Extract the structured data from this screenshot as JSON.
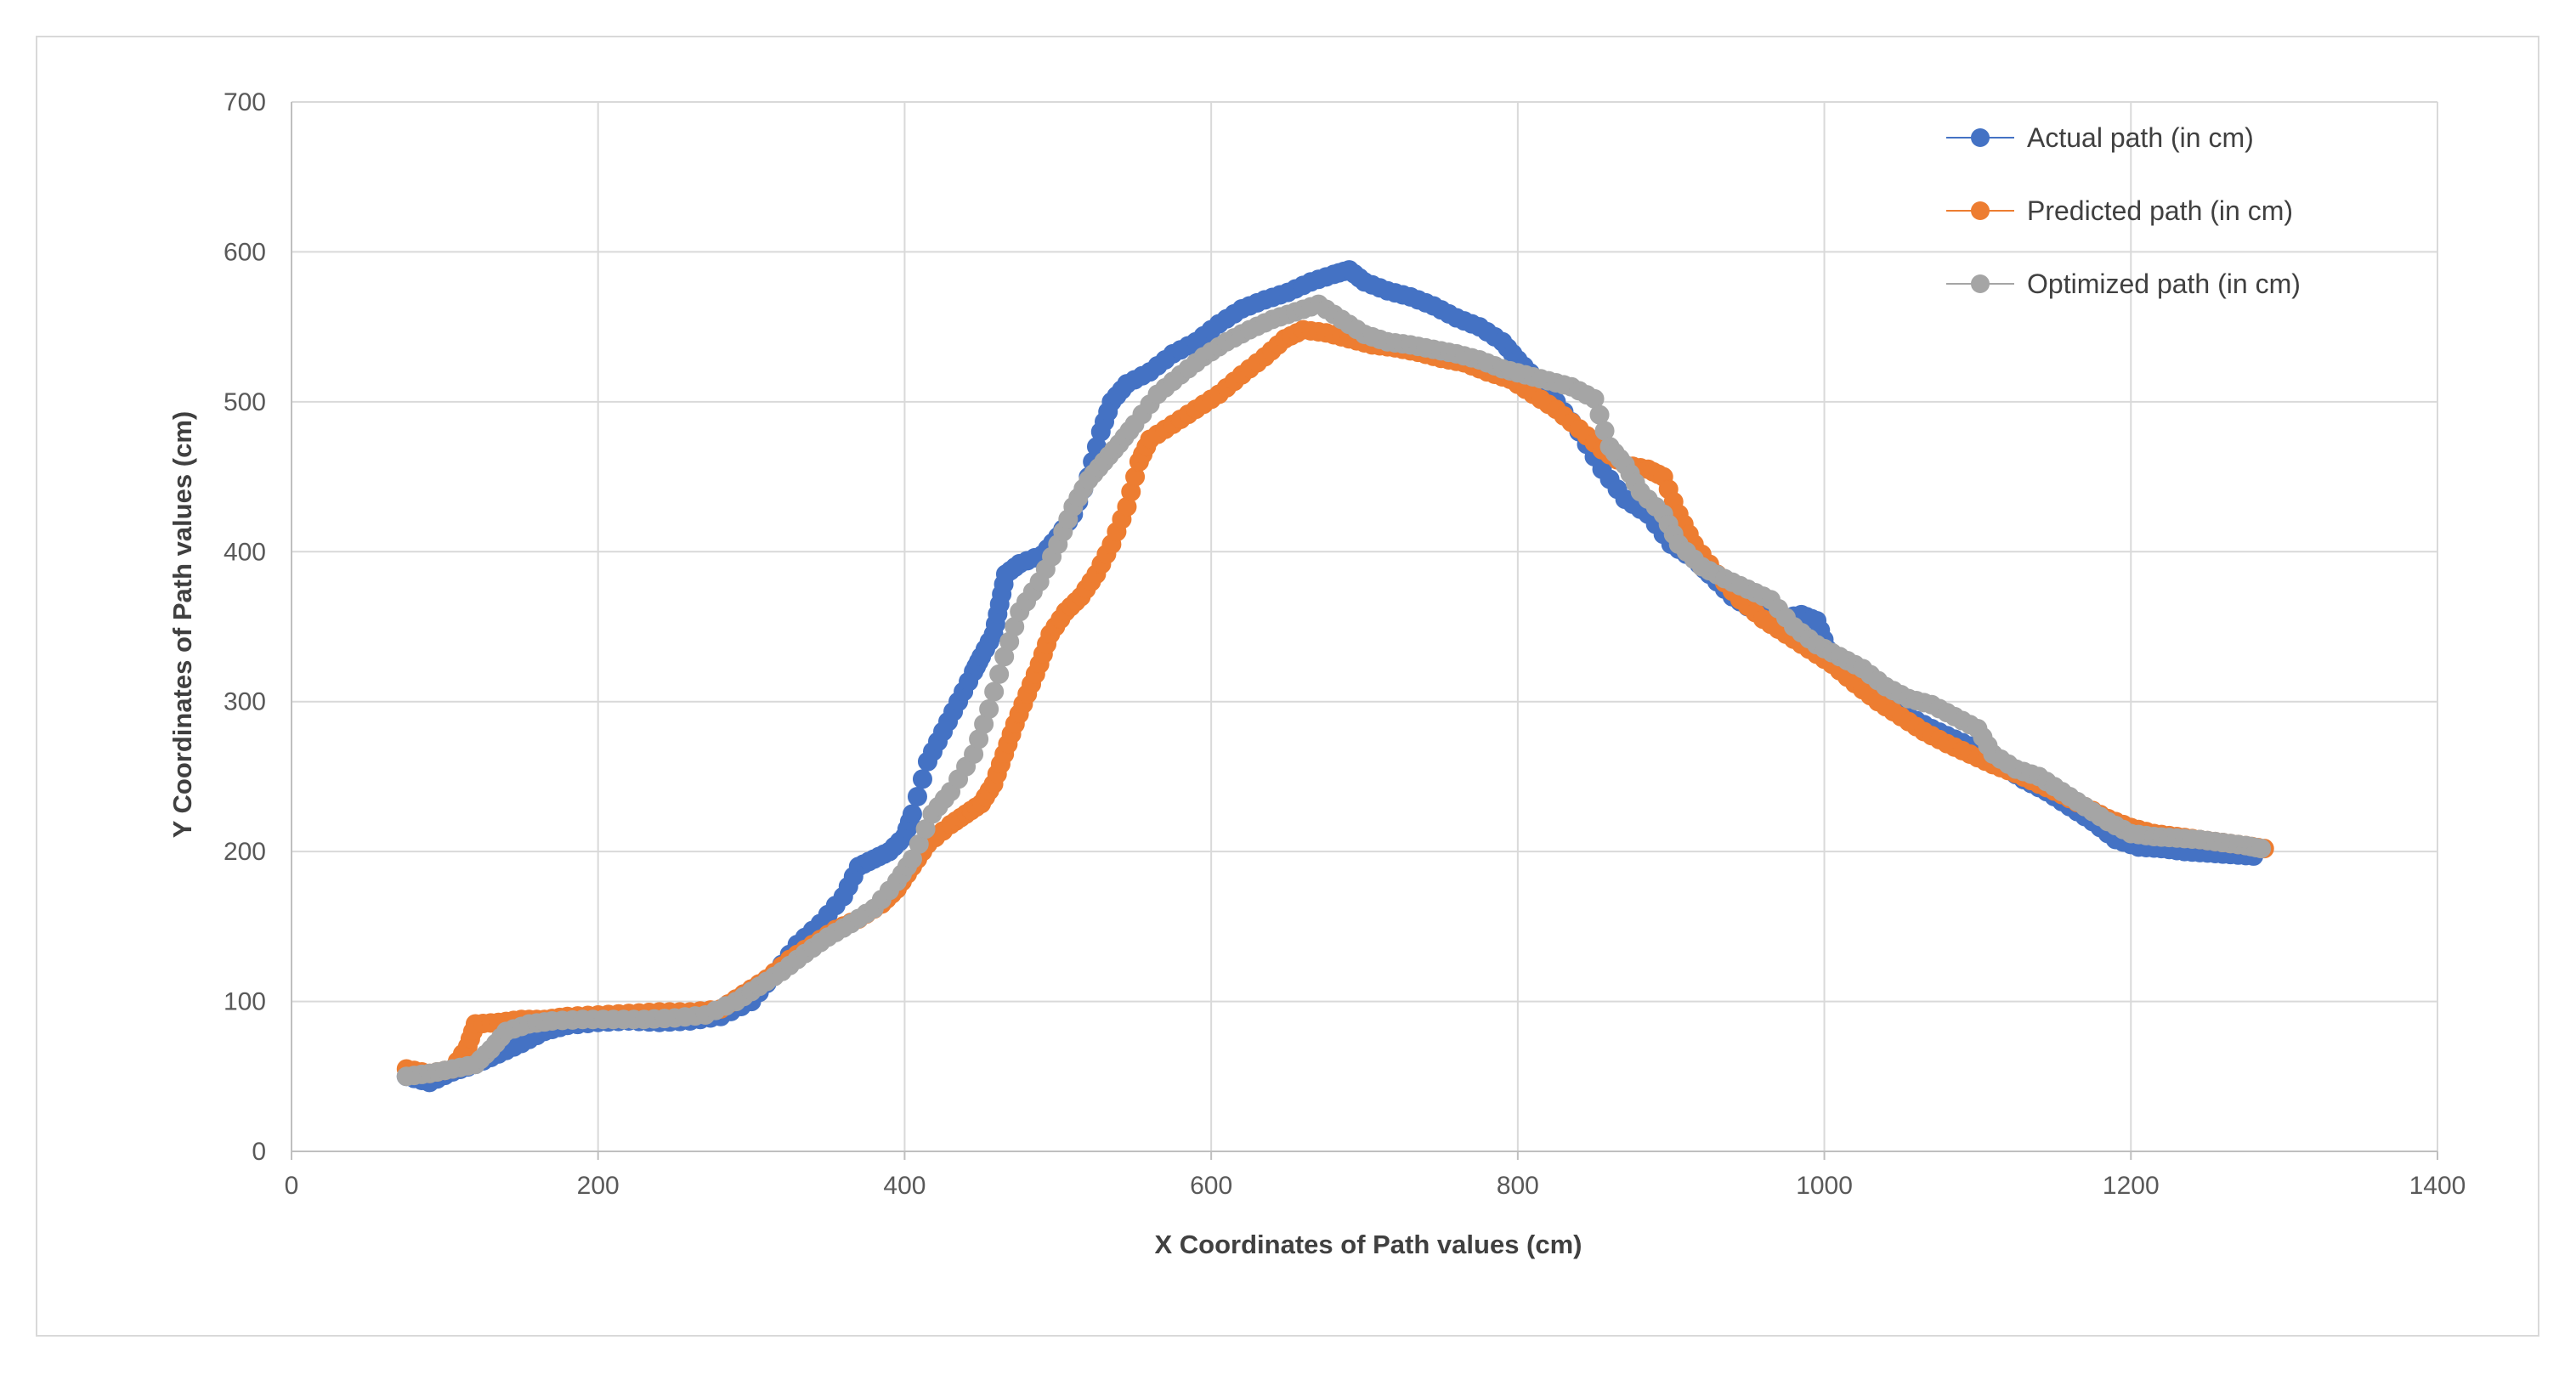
{
  "chart_data": {
    "type": "scatter",
    "title": "",
    "xlabel": "X Coordinates of Path values (cm)",
    "ylabel": "Y Coordinates of Path values (cm)",
    "xlim": [
      0,
      1400
    ],
    "ylim": [
      0,
      700
    ],
    "xticks": [
      0,
      200,
      400,
      600,
      800,
      1000,
      1200,
      1400
    ],
    "yticks": [
      0,
      100,
      200,
      300,
      400,
      500,
      600,
      700
    ],
    "xtick_labels": [
      "0",
      "200",
      "400",
      "600",
      "800",
      "1000",
      "1200",
      "1400"
    ],
    "ytick_labels": [
      "0",
      "100",
      "200",
      "300",
      "400",
      "500",
      "600",
      "700"
    ],
    "grid": true,
    "legend_position": "top-right",
    "series": [
      {
        "name": "Actual path (in cm)",
        "color": "#4472C4",
        "points": [
          [
            75,
            50
          ],
          [
            90,
            46
          ],
          [
            105,
            53
          ],
          [
            120,
            58
          ],
          [
            135,
            65
          ],
          [
            150,
            72
          ],
          [
            165,
            80
          ],
          [
            180,
            84
          ],
          [
            200,
            86
          ],
          [
            220,
            87
          ],
          [
            240,
            86
          ],
          [
            260,
            87
          ],
          [
            280,
            90
          ],
          [
            300,
            100
          ],
          [
            315,
            118
          ],
          [
            330,
            138
          ],
          [
            345,
            152
          ],
          [
            360,
            170
          ],
          [
            370,
            190
          ],
          [
            380,
            195
          ],
          [
            390,
            200
          ],
          [
            400,
            210
          ],
          [
            405,
            225
          ],
          [
            415,
            260
          ],
          [
            425,
            280
          ],
          [
            435,
            300
          ],
          [
            445,
            320
          ],
          [
            450,
            330
          ],
          [
            458,
            345
          ],
          [
            462,
            365
          ],
          [
            466,
            385
          ],
          [
            475,
            392
          ],
          [
            490,
            398
          ],
          [
            500,
            410
          ],
          [
            510,
            425
          ],
          [
            520,
            450
          ],
          [
            528,
            480
          ],
          [
            535,
            500
          ],
          [
            545,
            512
          ],
          [
            560,
            520
          ],
          [
            575,
            532
          ],
          [
            590,
            540
          ],
          [
            605,
            552
          ],
          [
            620,
            562
          ],
          [
            635,
            568
          ],
          [
            650,
            573
          ],
          [
            665,
            580
          ],
          [
            680,
            585
          ],
          [
            690,
            588
          ],
          [
            700,
            580
          ],
          [
            715,
            574
          ],
          [
            730,
            570
          ],
          [
            745,
            564
          ],
          [
            760,
            556
          ],
          [
            775,
            550
          ],
          [
            790,
            540
          ],
          [
            800,
            528
          ],
          [
            812,
            515
          ],
          [
            825,
            500
          ],
          [
            840,
            480
          ],
          [
            855,
            455
          ],
          [
            870,
            435
          ],
          [
            885,
            425
          ],
          [
            900,
            405
          ],
          [
            915,
            395
          ],
          [
            925,
            385
          ],
          [
            940,
            370
          ],
          [
            955,
            360
          ],
          [
            970,
            355
          ],
          [
            985,
            358
          ],
          [
            995,
            354
          ],
          [
            1002,
            335
          ],
          [
            1012,
            325
          ],
          [
            1025,
            312
          ],
          [
            1040,
            300
          ],
          [
            1055,
            290
          ],
          [
            1070,
            282
          ],
          [
            1085,
            275
          ],
          [
            1100,
            268
          ],
          [
            1115,
            258
          ],
          [
            1130,
            248
          ],
          [
            1145,
            240
          ],
          [
            1160,
            230
          ],
          [
            1175,
            220
          ],
          [
            1190,
            208
          ],
          [
            1205,
            203
          ],
          [
            1220,
            202
          ],
          [
            1235,
            200
          ],
          [
            1250,
            199
          ],
          [
            1265,
            198
          ],
          [
            1280,
            197
          ]
        ]
      },
      {
        "name": "Predicted path (in cm)",
        "color": "#ED7D31",
        "points": [
          [
            75,
            55
          ],
          [
            90,
            52
          ],
          [
            105,
            55
          ],
          [
            115,
            70
          ],
          [
            120,
            85
          ],
          [
            135,
            86
          ],
          [
            150,
            88
          ],
          [
            165,
            88
          ],
          [
            180,
            90
          ],
          [
            200,
            91
          ],
          [
            220,
            92
          ],
          [
            240,
            93
          ],
          [
            260,
            93
          ],
          [
            280,
            95
          ],
          [
            295,
            105
          ],
          [
            310,
            115
          ],
          [
            325,
            128
          ],
          [
            340,
            138
          ],
          [
            355,
            148
          ],
          [
            370,
            155
          ],
          [
            385,
            165
          ],
          [
            395,
            175
          ],
          [
            405,
            190
          ],
          [
            415,
            205
          ],
          [
            430,
            218
          ],
          [
            440,
            225
          ],
          [
            450,
            232
          ],
          [
            458,
            245
          ],
          [
            465,
            265
          ],
          [
            472,
            285
          ],
          [
            480,
            305
          ],
          [
            488,
            325
          ],
          [
            495,
            345
          ],
          [
            505,
            360
          ],
          [
            515,
            370
          ],
          [
            525,
            385
          ],
          [
            535,
            405
          ],
          [
            545,
            430
          ],
          [
            553,
            460
          ],
          [
            560,
            475
          ],
          [
            575,
            485
          ],
          [
            590,
            495
          ],
          [
            605,
            505
          ],
          [
            620,
            518
          ],
          [
            635,
            530
          ],
          [
            648,
            542
          ],
          [
            660,
            548
          ],
          [
            675,
            546
          ],
          [
            690,
            542
          ],
          [
            705,
            538
          ],
          [
            720,
            536
          ],
          [
            735,
            533
          ],
          [
            750,
            529
          ],
          [
            765,
            526
          ],
          [
            780,
            520
          ],
          [
            795,
            515
          ],
          [
            810,
            505
          ],
          [
            825,
            495
          ],
          [
            840,
            482
          ],
          [
            855,
            468
          ],
          [
            870,
            458
          ],
          [
            885,
            455
          ],
          [
            895,
            450
          ],
          [
            905,
            425
          ],
          [
            915,
            405
          ],
          [
            930,
            385
          ],
          [
            945,
            368
          ],
          [
            960,
            355
          ],
          [
            975,
            345
          ],
          [
            990,
            335
          ],
          [
            1005,
            325
          ],
          [
            1020,
            312
          ],
          [
            1035,
            300
          ],
          [
            1050,
            290
          ],
          [
            1065,
            280
          ],
          [
            1080,
            272
          ],
          [
            1095,
            265
          ],
          [
            1110,
            258
          ],
          [
            1125,
            252
          ],
          [
            1140,
            245
          ],
          [
            1155,
            238
          ],
          [
            1170,
            230
          ],
          [
            1185,
            222
          ],
          [
            1200,
            216
          ],
          [
            1215,
            212
          ],
          [
            1230,
            210
          ],
          [
            1245,
            208
          ],
          [
            1260,
            206
          ],
          [
            1275,
            204
          ],
          [
            1287,
            202
          ]
        ]
      },
      {
        "name": "Optimized path (in cm)",
        "color": "#A5A5A5",
        "points": [
          [
            75,
            50
          ],
          [
            90,
            52
          ],
          [
            105,
            55
          ],
          [
            120,
            58
          ],
          [
            130,
            68
          ],
          [
            140,
            80
          ],
          [
            155,
            85
          ],
          [
            170,
            87
          ],
          [
            190,
            88
          ],
          [
            210,
            88
          ],
          [
            230,
            88
          ],
          [
            250,
            89
          ],
          [
            270,
            91
          ],
          [
            290,
            100
          ],
          [
            305,
            110
          ],
          [
            320,
            120
          ],
          [
            335,
            132
          ],
          [
            350,
            143
          ],
          [
            365,
            152
          ],
          [
            380,
            162
          ],
          [
            395,
            180
          ],
          [
            405,
            195
          ],
          [
            418,
            225
          ],
          [
            430,
            240
          ],
          [
            445,
            265
          ],
          [
            455,
            295
          ],
          [
            465,
            330
          ],
          [
            475,
            360
          ],
          [
            488,
            380
          ],
          [
            500,
            405
          ],
          [
            510,
            430
          ],
          [
            520,
            448
          ],
          [
            530,
            460
          ],
          [
            540,
            472
          ],
          [
            550,
            485
          ],
          [
            565,
            505
          ],
          [
            580,
            518
          ],
          [
            595,
            530
          ],
          [
            610,
            540
          ],
          [
            625,
            548
          ],
          [
            640,
            555
          ],
          [
            655,
            560
          ],
          [
            670,
            565
          ],
          [
            685,
            555
          ],
          [
            700,
            545
          ],
          [
            715,
            540
          ],
          [
            730,
            538
          ],
          [
            745,
            535
          ],
          [
            760,
            532
          ],
          [
            775,
            528
          ],
          [
            790,
            522
          ],
          [
            805,
            518
          ],
          [
            820,
            514
          ],
          [
            835,
            510
          ],
          [
            850,
            502
          ],
          [
            860,
            470
          ],
          [
            870,
            458
          ],
          [
            880,
            440
          ],
          [
            895,
            425
          ],
          [
            905,
            405
          ],
          [
            920,
            390
          ],
          [
            935,
            382
          ],
          [
            950,
            375
          ],
          [
            965,
            368
          ],
          [
            980,
            350
          ],
          [
            995,
            338
          ],
          [
            1010,
            330
          ],
          [
            1025,
            322
          ],
          [
            1040,
            310
          ],
          [
            1055,
            302
          ],
          [
            1070,
            298
          ],
          [
            1085,
            290
          ],
          [
            1100,
            282
          ],
          [
            1110,
            265
          ],
          [
            1125,
            255
          ],
          [
            1140,
            250
          ],
          [
            1155,
            240
          ],
          [
            1170,
            230
          ],
          [
            1185,
            220
          ],
          [
            1200,
            212
          ],
          [
            1215,
            210
          ],
          [
            1230,
            209
          ],
          [
            1245,
            208
          ],
          [
            1260,
            206
          ],
          [
            1275,
            204
          ],
          [
            1285,
            202
          ]
        ]
      }
    ]
  }
}
